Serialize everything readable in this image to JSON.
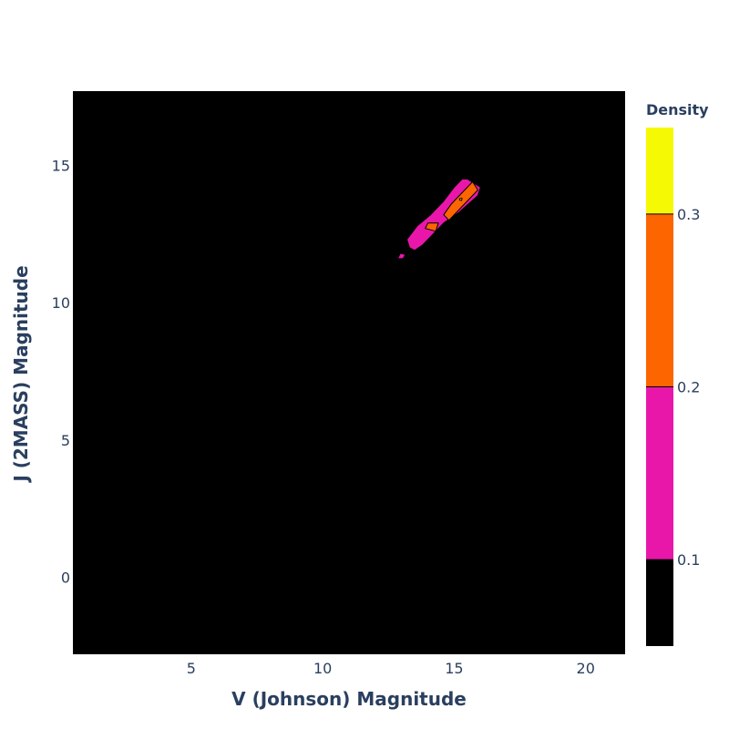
{
  "chart_data": {
    "type": "contour",
    "title": "",
    "xlabel": "V (Johnson) Magnitude",
    "ylabel": "J (2MASS) Magnitude",
    "xlim": [
      0.5,
      21.5
    ],
    "ylim": [
      -2.8,
      17.7
    ],
    "x_ticks": [
      5,
      10,
      15,
      20
    ],
    "y_ticks": [
      0,
      5,
      10,
      15
    ],
    "grid": false,
    "plot_background": "#000000",
    "colorbar": {
      "title": "Density",
      "range": [
        0.05,
        0.35
      ],
      "ticks": [
        0.1,
        0.2,
        0.3
      ],
      "levels": [
        {
          "from": 0.05,
          "to": 0.1,
          "color": "#000000"
        },
        {
          "from": 0.1,
          "to": 0.2,
          "color": "#e817aa"
        },
        {
          "from": 0.2,
          "to": 0.3,
          "color": "#fc6500"
        },
        {
          "from": 0.3,
          "to": 0.35,
          "color": "#f6f904"
        }
      ]
    },
    "regions": [
      {
        "level": 0.1,
        "color": "#e817aa",
        "points": [
          [
            15.5,
            14.5
          ],
          [
            16.0,
            14.2
          ],
          [
            15.9,
            13.9
          ],
          [
            15.2,
            13.3
          ],
          [
            14.6,
            12.9
          ],
          [
            14.2,
            12.5
          ],
          [
            13.8,
            12.1
          ],
          [
            13.5,
            11.9
          ],
          [
            13.3,
            12.0
          ],
          [
            13.2,
            12.3
          ],
          [
            13.6,
            12.8
          ],
          [
            14.1,
            13.2
          ],
          [
            14.6,
            13.7
          ],
          [
            15.0,
            14.2
          ],
          [
            15.3,
            14.5
          ]
        ]
      },
      {
        "level": 0.1,
        "color": "#e817aa",
        "points": [
          [
            12.95,
            11.8
          ],
          [
            13.15,
            11.75
          ],
          [
            13.05,
            11.6
          ],
          [
            12.85,
            11.6
          ]
        ]
      },
      {
        "level": 0.2,
        "color": "#fc6500",
        "points": [
          [
            15.7,
            14.4
          ],
          [
            15.9,
            14.1
          ],
          [
            15.4,
            13.6
          ],
          [
            15.0,
            13.2
          ],
          [
            14.8,
            13.0
          ],
          [
            14.6,
            13.2
          ],
          [
            14.9,
            13.6
          ],
          [
            15.3,
            14.0
          ]
        ]
      },
      {
        "level": 0.2,
        "color": "#fc6500",
        "points": [
          [
            14.0,
            12.9
          ],
          [
            14.4,
            12.9
          ],
          [
            14.3,
            12.6
          ],
          [
            13.9,
            12.7
          ]
        ]
      },
      {
        "level": 0.3,
        "color": "#f6f904",
        "points": [
          [
            15.22,
            13.8
          ],
          [
            15.3,
            13.8
          ],
          [
            15.28,
            13.72
          ],
          [
            15.2,
            13.74
          ]
        ]
      }
    ]
  }
}
